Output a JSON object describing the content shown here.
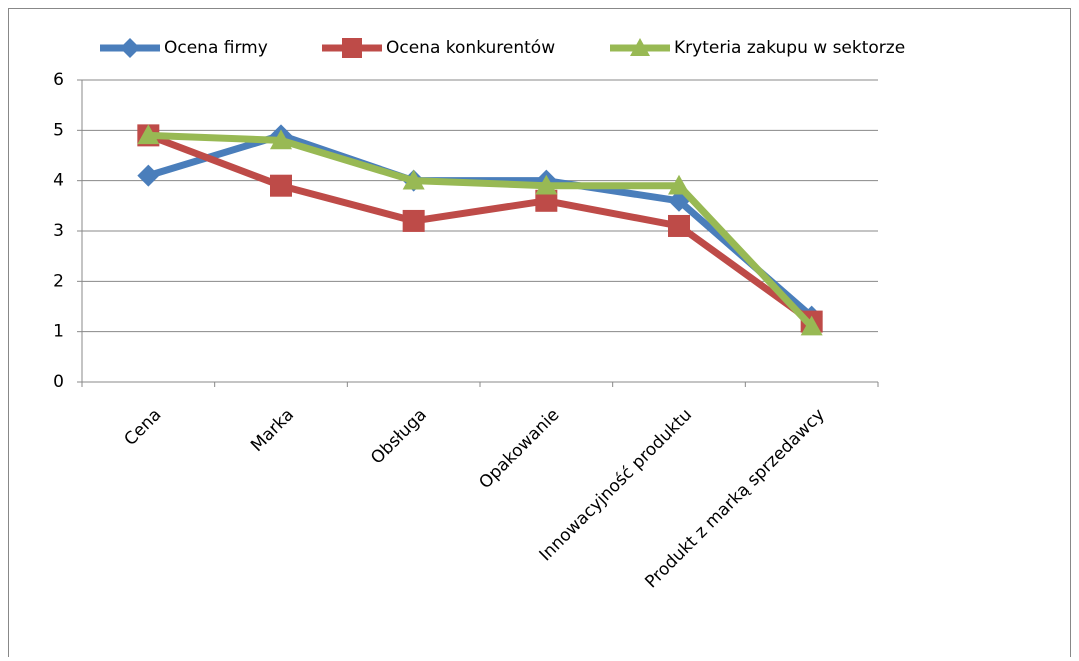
{
  "chart_data": {
    "type": "line",
    "categories": [
      "Cena",
      "Marka",
      "Obsługa",
      "Opakowanie",
      "Innowacyjność produktu",
      "Produkt z marką sprzedawcy"
    ],
    "series": [
      {
        "name": "Ocena firmy",
        "color": "#4a7ebb",
        "marker": "diamond",
        "values": [
          4.1,
          4.9,
          4.0,
          4.0,
          3.6,
          1.3
        ]
      },
      {
        "name": "Ocena konkurentów",
        "color": "#be4b48",
        "marker": "square",
        "values": [
          4.9,
          3.9,
          3.2,
          3.6,
          3.1,
          1.2
        ]
      },
      {
        "name": "Kryteria zakupu w sektorze",
        "color": "#98b954",
        "marker": "triangle",
        "values": [
          4.9,
          4.8,
          4.0,
          3.9,
          3.9,
          1.1
        ]
      }
    ],
    "ylim": [
      0,
      6
    ],
    "yticks": [
      0,
      1,
      2,
      3,
      4,
      5,
      6
    ],
    "grid": true,
    "legend": "top"
  }
}
